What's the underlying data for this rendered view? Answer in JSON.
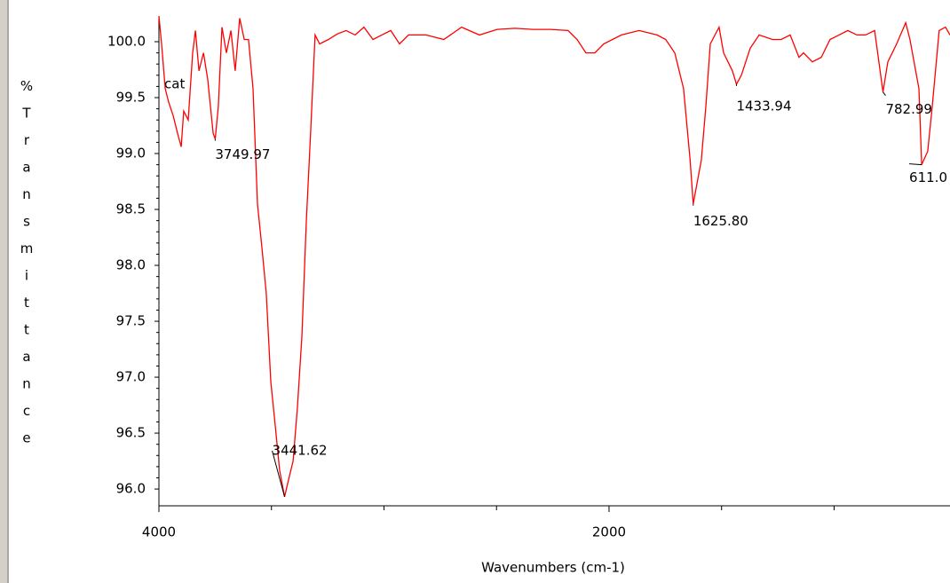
{
  "chart_data": {
    "type": "line",
    "xlabel": "Wavenumbers (cm-1)",
    "ylabel": "%Transmittance",
    "annotation": "cat",
    "color": "#ff0000",
    "xlim": [
      4000,
      485
    ],
    "ylim": [
      95.85,
      100.23
    ],
    "xticks": [
      4000,
      2000
    ],
    "xminor": [
      3500,
      3000,
      2500,
      1500,
      1000
    ],
    "yticks": [
      {
        "value": 96,
        "label": "96.0"
      },
      {
        "value": 96.5,
        "label": "96.5"
      },
      {
        "value": 97,
        "label": "97.0"
      },
      {
        "value": 97.5,
        "label": "97.5"
      },
      {
        "value": 98,
        "label": "98.0"
      },
      {
        "value": 98.5,
        "label": "98.5"
      },
      {
        "value": 99,
        "label": "99.0"
      },
      {
        "value": 99.5,
        "label": "99.5"
      },
      {
        "value": 100,
        "label": "100.0"
      }
    ],
    "x": [
      4000,
      3988,
      3972,
      3957,
      3937,
      3917,
      3901,
      3890,
      3870,
      3850,
      3838,
      3822,
      3802,
      3783,
      3759,
      3749.97,
      3736,
      3720,
      3700,
      3680,
      3661,
      3641,
      3621,
      3602,
      3582,
      3562,
      3542,
      3523,
      3503,
      3483,
      3464,
      3441.62,
      3428,
      3404,
      3385,
      3365,
      3345,
      3326,
      3306,
      3286,
      3247,
      3207,
      3168,
      3128,
      3089,
      3049,
      3010,
      2970,
      2931,
      2891,
      2813,
      2734,
      2655,
      2576,
      2497,
      2418,
      2339,
      2261,
      2182,
      2142,
      2103,
      2063,
      2024,
      1945,
      1866,
      1787,
      1748,
      1708,
      1669,
      1640,
      1625.8,
      1590,
      1570,
      1550,
      1511,
      1491,
      1452,
      1433.94,
      1412,
      1373,
      1333,
      1274,
      1235,
      1195,
      1156,
      1136,
      1097,
      1057,
      1018,
      978,
      939,
      899,
      860,
      820,
      801,
      782.99,
      761,
      722,
      682,
      663,
      623,
      611.0,
      584,
      564,
      533,
      505,
      485
    ],
    "values": [
      100.23,
      99.98,
      99.58,
      99.46,
      99.34,
      99.18,
      99.06,
      99.38,
      99.3,
      99.9,
      100.1,
      99.74,
      99.9,
      99.66,
      99.18,
      99.13,
      99.42,
      100.13,
      99.9,
      100.1,
      99.74,
      100.21,
      100.02,
      100.02,
      99.58,
      98.55,
      98.15,
      97.75,
      96.96,
      96.56,
      96.17,
      95.93,
      96.05,
      96.25,
      96.72,
      97.36,
      98.39,
      99.18,
      100.06,
      99.98,
      100.02,
      100.07,
      100.1,
      100.06,
      100.13,
      100.02,
      100.06,
      100.1,
      99.98,
      100.06,
      100.06,
      100.02,
      100.13,
      100.06,
      100.11,
      100.12,
      100.11,
      100.11,
      100.1,
      100.02,
      99.9,
      99.9,
      99.98,
      100.06,
      100.1,
      100.06,
      100.02,
      99.9,
      99.58,
      98.95,
      98.55,
      98.94,
      99.42,
      99.98,
      100.13,
      99.9,
      99.74,
      99.62,
      99.7,
      99.94,
      100.06,
      100.02,
      100.02,
      100.06,
      99.86,
      99.9,
      99.82,
      99.86,
      100.02,
      100.06,
      100.1,
      100.06,
      100.06,
      100.1,
      99.82,
      99.55,
      99.82,
      99.98,
      100.17,
      100.02,
      99.58,
      98.9,
      99.02,
      99.42,
      100.1,
      100.13,
      100.06
    ],
    "peaks": [
      {
        "label": "3749.97",
        "x": 3749.97,
        "y": 99.13
      },
      {
        "label": "3441.62",
        "x": 3441.62,
        "y": 95.93
      },
      {
        "label": "1625.80",
        "x": 1625.8,
        "y": 98.55
      },
      {
        "label": "1433.94",
        "x": 1433.94,
        "y": 99.62
      },
      {
        "label": "782.99",
        "x": 782.99,
        "y": 99.55
      },
      {
        "label": "611.0",
        "x": 611.0,
        "y": 98.9
      }
    ]
  }
}
